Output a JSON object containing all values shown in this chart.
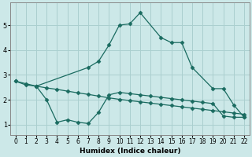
{
  "xlabel": "Humidex (Indice chaleur)",
  "bg_color": "#cce8e8",
  "grid_color": "#aacfcf",
  "line_color": "#1a6b60",
  "xlim": [
    -0.5,
    22.5
  ],
  "ylim": [
    0.6,
    5.9
  ],
  "xticks": [
    0,
    1,
    2,
    3,
    4,
    5,
    6,
    7,
    8,
    9,
    10,
    11,
    12,
    13,
    14,
    15,
    16,
    17,
    18,
    19,
    20,
    21,
    22
  ],
  "yticks": [
    1,
    2,
    3,
    4,
    5
  ],
  "line1_x": [
    0,
    1,
    2,
    3,
    4,
    5,
    6,
    7,
    8,
    9,
    10,
    11,
    12,
    13,
    14,
    15,
    16,
    17,
    18,
    19,
    20,
    21,
    22
  ],
  "line1_y": [
    2.75,
    2.65,
    2.55,
    2.48,
    2.42,
    2.35,
    2.28,
    2.22,
    2.15,
    2.08,
    2.02,
    1.97,
    1.92,
    1.87,
    1.82,
    1.77,
    1.72,
    1.67,
    1.62,
    1.57,
    1.52,
    1.47,
    1.42
  ],
  "line2_x": [
    0,
    1,
    2,
    7,
    8,
    9,
    10,
    11,
    12,
    14,
    15,
    16,
    17,
    19,
    20,
    21,
    22
  ],
  "line2_y": [
    2.75,
    2.6,
    2.55,
    3.3,
    3.55,
    4.2,
    5.0,
    5.05,
    5.5,
    4.5,
    4.3,
    4.3,
    3.3,
    2.45,
    2.45,
    1.8,
    1.3
  ],
  "line3_x": [
    2,
    3,
    4,
    5,
    6,
    7,
    8,
    9,
    10,
    11,
    12,
    13,
    14,
    15,
    16,
    17,
    18,
    19,
    20,
    21,
    22
  ],
  "line3_y": [
    2.55,
    2.0,
    1.1,
    1.2,
    1.1,
    1.05,
    1.5,
    2.2,
    2.3,
    2.25,
    2.2,
    2.15,
    2.1,
    2.05,
    2.0,
    1.95,
    1.9,
    1.85,
    1.35,
    1.3,
    1.3
  ]
}
